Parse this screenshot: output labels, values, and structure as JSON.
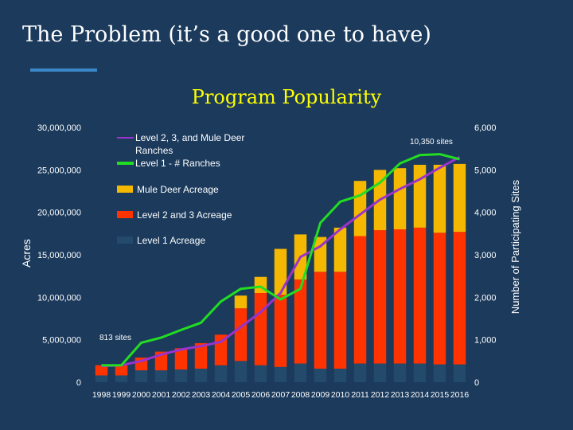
{
  "slide": {
    "title": "The Problem (it’s a good one to have)"
  },
  "colors": {
    "background": "#1b3a5c",
    "accent_rule": "#3a86c8",
    "title_text": "#ffffff",
    "chart_title_text": "#ffff00",
    "mule_deer": "#f5b800",
    "level23": "#ff3300",
    "level1": "#234a6a",
    "line_level23": "#9933cc",
    "line_level1": "#22dd22"
  },
  "chart_data": {
    "type": "bar",
    "title": "Program Popularity",
    "xlabel": "",
    "ylabel": "Acres",
    "y2label": "Number of Participating Sites",
    "ylim": [
      0,
      30000000
    ],
    "y2lim": [
      0,
      6000
    ],
    "yticks": [
      "30,000,000",
      "25,000,000",
      "20,000,000",
      "15,000,000",
      "10,000,000",
      "5,000,000",
      "0"
    ],
    "y2ticks": [
      "6,000",
      "5,000",
      "4,000",
      "3,000",
      "2,000",
      "1,000",
      "0"
    ],
    "categories": [
      "1998",
      "1999",
      "2000",
      "2001",
      "2002",
      "2003",
      "2004",
      "2005",
      "2006",
      "2007",
      "2008",
      "2009",
      "2010",
      "2011",
      "2012",
      "2013",
      "2014",
      "2015",
      "2016"
    ],
    "stacked_series": [
      {
        "name": "Level 1 Acreage",
        "color_key": "level1",
        "values": [
          800000,
          800000,
          1400000,
          1400000,
          1500000,
          1600000,
          2000000,
          2500000,
          2000000,
          1800000,
          2200000,
          1600000,
          1600000,
          2200000,
          2200000,
          2200000,
          2200000,
          2100000,
          2100000
        ]
      },
      {
        "name": "Level 2 and 3 Acreage",
        "color_key": "level23",
        "values": [
          1200000,
          1200000,
          1500000,
          2200000,
          2500000,
          3000000,
          3600000,
          6200000,
          8500000,
          8500000,
          9900000,
          11400000,
          11400000,
          15000000,
          15700000,
          15800000,
          16000000,
          15500000,
          15600000
        ]
      },
      {
        "name": "Mule Deer Acreage",
        "color_key": "mule_deer",
        "values": [
          0,
          0,
          0,
          0,
          0,
          0,
          0,
          1500000,
          1900000,
          5400000,
          5300000,
          4100000,
          5200000,
          6500000,
          7100000,
          7200000,
          7400000,
          8000000,
          8000000
        ]
      }
    ],
    "line_series": [
      {
        "name": "Level 2, 3, and Mule Deer Ranches",
        "axis": "secondary",
        "color_key": "line_level23",
        "values": [
          380,
          400,
          500,
          650,
          770,
          850,
          950,
          1300,
          1650,
          2100,
          2950,
          3200,
          3600,
          3950,
          4300,
          4550,
          4780,
          5050,
          5300
        ]
      },
      {
        "name": "Level 1 - # Ranches",
        "axis": "secondary",
        "color_key": "line_level1",
        "values": [
          400,
          400,
          930,
          1050,
          1230,
          1400,
          1900,
          2200,
          2250,
          1950,
          2200,
          3750,
          4250,
          4400,
          4700,
          5150,
          5350,
          5370,
          5250
        ]
      }
    ],
    "annotations": [
      "813 sites",
      "10,350 sites"
    ],
    "legend": {
      "position": "top-left",
      "line_label": "Level 2, 3, and Mule Deer Ranches",
      "line2_label": "Level 1 - # Ranches",
      "mule_label": "Mule Deer Acreage",
      "level23_label": "Level 2 and 3 Acreage",
      "level1_label": "Level 1 Acreage"
    }
  }
}
